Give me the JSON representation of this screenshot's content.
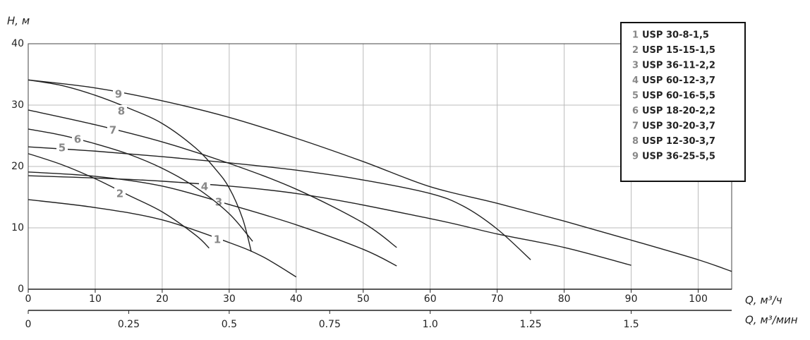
{
  "chart_data": {
    "type": "line",
    "y_label": "H, м",
    "x_label": "Q, м³/ч",
    "x2_label": "Q, м³/мин",
    "xlim": [
      0,
      105
    ],
    "xticks": [
      0,
      10,
      20,
      30,
      40,
      50,
      60,
      70,
      80,
      90,
      100
    ],
    "x2lim": [
      0,
      1.75
    ],
    "x2ticks": [
      0,
      0.25,
      0.5,
      0.75,
      {
        "value": 1.0,
        "label": "1.0"
      },
      1.25,
      1.5
    ],
    "ylim": [
      0,
      40
    ],
    "yticks": [
      0,
      10,
      20,
      30,
      40
    ],
    "grid": true,
    "legend": "top-right",
    "series": [
      {
        "label": "1",
        "name": "USP 30-8-1,5",
        "color": "#222",
        "x": [
          0,
          10,
          20,
          30,
          35,
          40
        ],
        "values": [
          14.6,
          13.3,
          11.3,
          7.6,
          5.3,
          2.0
        ]
      },
      {
        "label": "2",
        "name": "USP 15-15-1,5",
        "color": "#222",
        "x": [
          0,
          5,
          10,
          15,
          20,
          25,
          27
        ],
        "values": [
          22.1,
          20.3,
          18.0,
          15.3,
          12.6,
          8.8,
          6.7
        ]
      },
      {
        "label": "3",
        "name": "USP 36-11-2,2",
        "color": "#222",
        "x": [
          0,
          10,
          20,
          30,
          40,
          50,
          55
        ],
        "values": [
          19.1,
          18.4,
          16.8,
          13.8,
          10.5,
          6.5,
          3.8
        ]
      },
      {
        "label": "4",
        "name": "USP 60-12-3,7",
        "color": "#222",
        "x": [
          0,
          20,
          40,
          60,
          70,
          80,
          90
        ],
        "values": [
          18.5,
          17.6,
          15.6,
          11.5,
          9.0,
          6.8,
          3.9
        ]
      },
      {
        "label": "5",
        "name": "USP 60-16-5,5",
        "color": "#222",
        "x": [
          0,
          10,
          20,
          30,
          40,
          50,
          60,
          65,
          70,
          75
        ],
        "values": [
          23.2,
          22.5,
          21.6,
          20.6,
          19.4,
          17.8,
          15.6,
          13.5,
          9.8,
          4.8
        ]
      },
      {
        "label": "6",
        "name": "USP 18-20-2,2",
        "color": "#222",
        "x": [
          0,
          5,
          10,
          15,
          20,
          25,
          30,
          33.5
        ],
        "values": [
          26.1,
          25.1,
          23.7,
          22.0,
          19.7,
          16.6,
          12.3,
          7.8
        ]
      },
      {
        "label": "7",
        "name": "USP 30-20-3,7",
        "color": "#222",
        "x": [
          0,
          10,
          20,
          30,
          40,
          50,
          55
        ],
        "values": [
          29.2,
          26.8,
          24.0,
          20.5,
          16.3,
          10.8,
          6.8
        ]
      },
      {
        "label": "8",
        "name": "USP 12-30-3,7",
        "color": "#222",
        "x": [
          0,
          5,
          10,
          15,
          20,
          25,
          28,
          30,
          32,
          33.3
        ],
        "values": [
          34.1,
          33.2,
          31.6,
          29.5,
          27.0,
          23.0,
          19.5,
          16.5,
          11.5,
          6.1
        ]
      },
      {
        "label": "9",
        "name": "USP 36-25-5,5",
        "color": "#222",
        "x": [
          0,
          10,
          20,
          30,
          40,
          50,
          60,
          70,
          80,
          90,
          100,
          105
        ],
        "values": [
          34.1,
          32.8,
          30.7,
          28.0,
          24.6,
          20.8,
          16.7,
          14.0,
          11.1,
          8.0,
          4.8,
          2.9
        ]
      }
    ]
  }
}
